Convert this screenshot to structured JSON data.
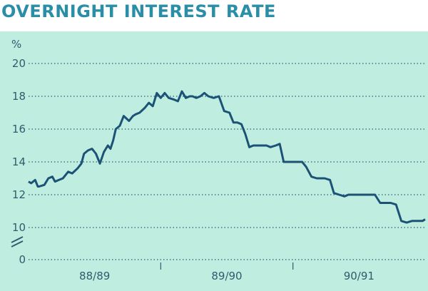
{
  "title": "OVERNIGHT INTEREST RATE",
  "chart_data": {
    "type": "line",
    "title": "OVERNIGHT INTEREST RATE",
    "ylabel": "%",
    "xlabel": "",
    "ylim": [
      0,
      20
    ],
    "axis_break": "between 0 and 10",
    "y_ticks": [
      "0",
      "10",
      "12",
      "14",
      "16",
      "18",
      "20"
    ],
    "x_labels": [
      "88/89",
      "89/90",
      "90/91"
    ],
    "x_range": [
      0,
      3
    ],
    "grid": true,
    "colors": {
      "line": "#1c5276",
      "background": "#bfeee0",
      "grid": "#2f5c6e",
      "title": "#2a8fa6"
    },
    "series": [
      {
        "x": [
          0.0,
          0.02,
          0.05,
          0.07,
          0.08,
          0.12,
          0.15,
          0.18,
          0.2,
          0.23,
          0.26,
          0.3,
          0.33,
          0.37,
          0.4,
          0.42,
          0.45,
          0.48,
          0.51,
          0.54,
          0.57,
          0.6,
          0.62,
          0.64,
          0.66,
          0.69,
          0.72,
          0.76,
          0.79,
          0.81,
          0.84,
          0.88,
          0.91,
          0.94,
          0.97,
          1.0,
          1.03,
          1.06,
          1.1,
          1.13,
          1.16,
          1.19,
          1.22,
          1.24,
          1.27,
          1.3,
          1.33,
          1.36,
          1.4,
          1.44,
          1.48,
          1.52,
          1.55,
          1.58,
          1.61,
          1.64,
          1.67,
          1.7,
          1.73,
          1.76,
          1.8,
          1.83,
          1.87,
          1.9,
          1.93,
          1.96,
          2.0,
          2.03,
          2.07,
          2.1,
          2.14,
          2.18,
          2.21,
          2.24,
          2.28,
          2.31,
          2.35,
          2.39,
          2.42,
          2.46,
          2.5,
          2.54,
          2.58,
          2.62,
          2.66,
          2.7,
          2.74,
          2.78,
          2.82,
          2.86,
          2.9,
          2.94,
          2.98,
          3.0
        ],
        "y": [
          12.8,
          12.7,
          12.9,
          12.5,
          12.5,
          12.6,
          13.0,
          13.1,
          12.8,
          12.9,
          13.0,
          13.4,
          13.3,
          13.6,
          13.9,
          14.5,
          14.7,
          14.8,
          14.5,
          13.9,
          14.6,
          15.0,
          14.8,
          15.3,
          16.0,
          16.2,
          16.8,
          16.5,
          16.8,
          16.9,
          17.0,
          17.3,
          17.6,
          17.4,
          18.2,
          17.9,
          18.2,
          17.9,
          17.8,
          17.7,
          18.3,
          17.9,
          18.0,
          18.0,
          17.9,
          18.0,
          18.2,
          18.0,
          17.9,
          18.0,
          17.1,
          17.0,
          16.4,
          16.4,
          16.3,
          15.7,
          14.9,
          15.0,
          15.0,
          15.0,
          15.0,
          14.9,
          15.0,
          15.1,
          14.0,
          14.0,
          14.0,
          14.0,
          14.0,
          13.7,
          13.1,
          13.0,
          13.0,
          13.0,
          12.9,
          12.1,
          12.0,
          11.9,
          12.0,
          12.0,
          12.0,
          12.0,
          12.0,
          12.0,
          11.5,
          11.5,
          11.5,
          11.4,
          10.4,
          10.3,
          10.4,
          10.4,
          10.4,
          10.5
        ]
      }
    ]
  }
}
